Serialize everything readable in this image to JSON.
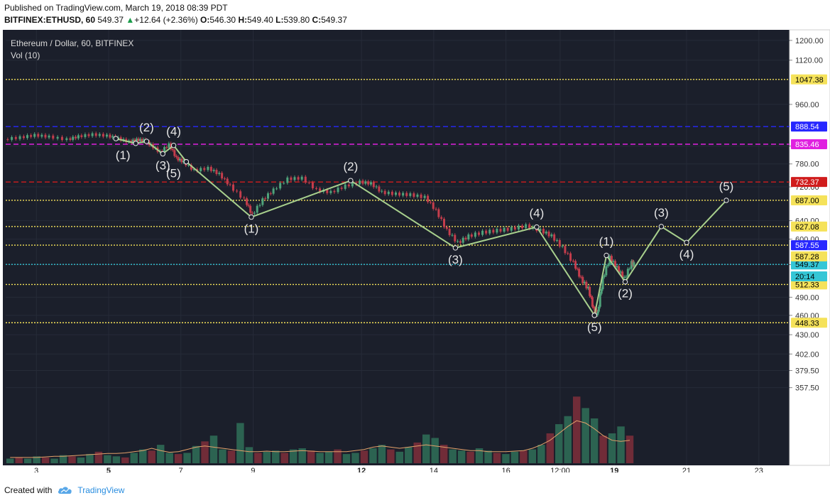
{
  "header": {
    "published": "Published on TradingView.com, March 19, 2018 08:39 PDT",
    "symbol": "BITFINEX:ETHUSD, 60",
    "last": "549.37",
    "change_arrow": "▲",
    "change": "+12.64 (+2.36%)",
    "o_label": "O:",
    "o": "546.30",
    "h_label": "H:",
    "h": "549.40",
    "l_label": "L:",
    "l": "539.80",
    "c_label": "C:",
    "c": "549.37"
  },
  "legend": {
    "title": "Ethereum / Dollar, 60, BITFINEX",
    "indicator": "Vol (10)"
  },
  "footer": {
    "created_with": "Created with",
    "brand": "TradingView",
    "logo_icon": "tradingview-cloud-icon"
  },
  "colors": {
    "background": "#1b1f2b",
    "up_candle": "#4fa37b",
    "down_candle": "#c43d4c",
    "wave_line": "#a8d08d",
    "level_yellow": "#f5e25a",
    "level_blue": "#2727ff",
    "level_magenta": "#e020e0",
    "level_red": "#d01c1c",
    "price_cyan": "#35c6d6"
  },
  "chart_data": {
    "type": "line",
    "title": "Ethereum / Dollar, 60, BITFINEX",
    "y_scale": "log",
    "ylim": [
      345,
      1245
    ],
    "y_ticks": [
      1200,
      1120,
      960,
      830,
      780,
      720,
      640,
      600,
      549,
      490,
      460,
      430,
      402,
      379.5,
      357.5
    ],
    "y_tick_labels": [
      "1200.00",
      "1120.00",
      "960.00",
      "830.00",
      "780.00",
      "720.00",
      "640.00",
      "600.00",
      "549.00",
      "490.00",
      "460.00",
      "430.00",
      "402.00",
      "379.50",
      "357.50"
    ],
    "x_ticks": [
      3,
      5,
      7,
      9,
      12,
      14,
      16,
      17.5,
      19,
      21,
      23
    ],
    "x_tick_labels": [
      "3",
      "5",
      "7",
      "9",
      "12",
      "14",
      "16",
      "12:00",
      "19",
      "21",
      "23"
    ],
    "bold_x_ticks": [
      "5",
      "12",
      "19"
    ],
    "xlim": [
      2.15,
      23.85
    ],
    "horizontal_levels": [
      {
        "value": 1047.38,
        "label": "1047.38",
        "style": "dotted",
        "color": "#f5e25a"
      },
      {
        "value": 888.54,
        "label": "888.54",
        "style": "dashed",
        "color": "#2727ff"
      },
      {
        "value": 835.46,
        "label": "835.46",
        "style": "dashed",
        "color": "#e020e0"
      },
      {
        "value": 732.37,
        "label": "732.37",
        "style": "dashed",
        "color": "#d01c1c"
      },
      {
        "value": 687.0,
        "label": "687.00",
        "style": "dotted",
        "color": "#f5e25a"
      },
      {
        "value": 627.08,
        "label": "627.08",
        "style": "dotted",
        "color": "#f5e25a"
      },
      {
        "value": 587.55,
        "label": "587.55",
        "style": "dotted",
        "color": "#f5e25a",
        "tag_color": "#2727ff"
      },
      {
        "value": 549.37,
        "label": "549.37",
        "style": "dotted",
        "color": "#35c6d6",
        "tag_color": "#35c6d6"
      },
      {
        "value": 512.33,
        "label": "512.33",
        "style": "dotted",
        "color": "#f5e25a"
      },
      {
        "value": 448.33,
        "label": "448.33",
        "style": "dotted",
        "color": "#f5e25a"
      }
    ],
    "extra_tags": [
      {
        "value": 565,
        "label": "587.28",
        "color": "#f5e25a"
      },
      {
        "value": 527,
        "label": "20:14",
        "color": "#35c6d6"
      }
    ],
    "price_path": [
      [
        2.15,
        850
      ],
      [
        2.6,
        855
      ],
      [
        3.0,
        862
      ],
      [
        3.4,
        857
      ],
      [
        3.9,
        849
      ],
      [
        4.2,
        858
      ],
      [
        4.6,
        864
      ],
      [
        5.0,
        860
      ],
      [
        5.3,
        852
      ],
      [
        5.6,
        842
      ],
      [
        5.8,
        848
      ],
      [
        6.0,
        846
      ],
      [
        6.2,
        832
      ],
      [
        6.45,
        812
      ],
      [
        6.7,
        834
      ],
      [
        6.9,
        795
      ],
      [
        7.1,
        785
      ],
      [
        7.4,
        762
      ],
      [
        7.8,
        768
      ],
      [
        8.1,
        752
      ],
      [
        8.4,
        722
      ],
      [
        8.8,
        688
      ],
      [
        9.0,
        652
      ],
      [
        9.3,
        688
      ],
      [
        9.6,
        712
      ],
      [
        10.0,
        740
      ],
      [
        10.4,
        742
      ],
      [
        10.8,
        712
      ],
      [
        11.2,
        706
      ],
      [
        11.6,
        722
      ],
      [
        12.0,
        732
      ],
      [
        12.3,
        728
      ],
      [
        12.6,
        706
      ],
      [
        13.0,
        702
      ],
      [
        13.4,
        700
      ],
      [
        13.8,
        694
      ],
      [
        14.1,
        662
      ],
      [
        14.4,
        618
      ],
      [
        14.7,
        592
      ],
      [
        15.0,
        606
      ],
      [
        15.4,
        614
      ],
      [
        15.8,
        618
      ],
      [
        16.2,
        622
      ],
      [
        16.6,
        628
      ],
      [
        17.0,
        618
      ],
      [
        17.3,
        606
      ],
      [
        17.6,
        582
      ],
      [
        17.9,
        552
      ],
      [
        18.1,
        522
      ],
      [
        18.3,
        504
      ],
      [
        18.45,
        468
      ],
      [
        18.55,
        462
      ],
      [
        18.7,
        522
      ],
      [
        18.9,
        562
      ],
      [
        19.1,
        542
      ],
      [
        19.3,
        522
      ],
      [
        19.5,
        552
      ],
      [
        19.55,
        549.37
      ]
    ],
    "volume": {
      "ylim": [
        0,
        6
      ],
      "values": [
        0.4,
        0.5,
        0.4,
        0.6,
        0.5,
        0.4,
        0.7,
        0.6,
        0.5,
        0.8,
        1.0,
        0.7,
        0.6,
        0.5,
        0.9,
        1.2,
        1.1,
        1.6,
        0.9,
        0.8,
        0.9,
        1.5,
        1.9,
        2.4,
        1.2,
        1.1,
        3.5,
        1.4,
        0.9,
        1.0,
        1.1,
        0.9,
        1.2,
        1.3,
        1.1,
        0.9,
        1.0,
        1.2,
        0.8,
        0.9,
        1.1,
        1.3,
        1.6,
        1.2,
        1.0,
        1.4,
        1.8,
        2.5,
        2.2,
        1.6,
        1.2,
        1.1,
        1.0,
        1.3,
        1.1,
        0.9,
        0.8,
        1.0,
        1.1,
        1.2,
        1.6,
        2.6,
        3.4,
        4.1,
        5.8,
        4.8,
        3.9,
        2.4,
        2.6,
        3.2,
        2.4
      ],
      "ma": [
        0.5,
        0.5,
        0.5,
        0.5,
        0.55,
        0.6,
        0.6,
        0.65,
        0.7,
        0.75,
        0.8,
        0.85,
        0.85,
        0.9,
        1.0,
        1.1,
        1.3,
        1.1,
        0.95,
        1.0,
        1.2,
        1.4,
        1.5,
        1.4,
        1.3,
        1.2,
        1.1,
        1.0,
        1.0,
        1.05,
        1.0,
        1.0,
        1.05,
        1.1,
        1.05,
        1.0,
        1.0,
        1.0,
        1.0,
        1.1,
        1.2,
        1.4,
        1.5,
        1.4,
        1.3,
        1.4,
        1.5,
        1.6,
        1.5,
        1.4,
        1.3,
        1.2,
        1.1,
        1.1,
        1.0,
        1.0,
        1.0,
        1.05,
        1.1,
        1.3,
        1.6,
        2.0,
        2.6,
        3.2,
        3.7,
        3.5,
        3.0,
        2.4,
        2.0,
        1.9,
        2.0
      ]
    },
    "wave_groups": [
      {
        "name": "sub-waves",
        "points": [
          [
            5.2,
            852
          ],
          [
            5.75,
            838
          ],
          [
            6.05,
            844
          ],
          [
            6.5,
            808
          ],
          [
            6.8,
            832
          ],
          [
            7.15,
            786
          ]
        ],
        "labels": [
          {
            "label": "(1)",
            "position": "below-left"
          },
          {
            "label": "(2)",
            "position": "above"
          },
          {
            "label": "(3)",
            "position": "below"
          },
          {
            "label": "(4)",
            "position": "above"
          },
          {
            "label": "(5)",
            "position": "below-left"
          }
        ]
      },
      {
        "name": "impulse-down",
        "points": [
          [
            7.15,
            786
          ],
          [
            8.95,
            648
          ],
          [
            11.7,
            736
          ],
          [
            14.6,
            582
          ],
          [
            16.85,
            626
          ],
          [
            18.45,
            460
          ]
        ],
        "labels": [
          {
            "label": "(1)",
            "position": "below"
          },
          {
            "label": "(2)",
            "position": "above"
          },
          {
            "label": "(3)",
            "position": "below"
          },
          {
            "label": "(4)",
            "position": "above"
          },
          {
            "label": "(5)",
            "position": "below"
          }
        ]
      },
      {
        "name": "projection-up",
        "points": [
          [
            18.45,
            460
          ],
          [
            18.78,
            567
          ],
          [
            19.3,
            517
          ],
          [
            20.3,
            627
          ],
          [
            21.0,
            593
          ],
          [
            22.1,
            687
          ]
        ],
        "labels": [
          {
            "label": "(1)",
            "position": "above"
          },
          {
            "label": "(2)",
            "position": "below"
          },
          {
            "label": "(3)",
            "position": "above"
          },
          {
            "label": "(4)",
            "position": "below"
          },
          {
            "label": "(5)",
            "position": "above"
          }
        ]
      }
    ],
    "grid": true,
    "legend_position": "top-left"
  }
}
